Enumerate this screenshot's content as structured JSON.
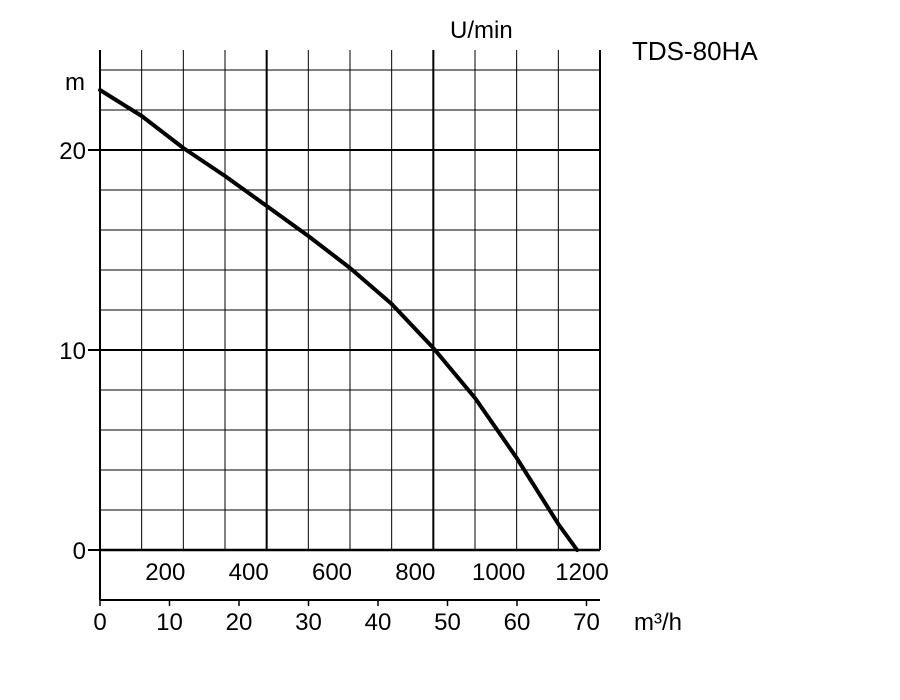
{
  "chart_data": {
    "type": "line",
    "title": "TDS-80HA",
    "ylabel": "m",
    "xlabel_top": "U/min",
    "xlabel_bottom": "m³/h",
    "ylim": [
      0,
      24
    ],
    "y_ticks": [
      "0",
      "10",
      "20"
    ],
    "x_top_lim": [
      0,
      1200
    ],
    "x_top_ticks": [
      "200",
      "400",
      "600",
      "800",
      "1000",
      "1200"
    ],
    "xlim": [
      0,
      70
    ],
    "x_bottom_ticks": [
      "0",
      "10",
      "20",
      "30",
      "40",
      "50",
      "60",
      "70"
    ],
    "grid": true,
    "series": [
      {
        "x": [
          0,
          100,
          200,
          300,
          400,
          500,
          600,
          700,
          800,
          900,
          1000,
          1100,
          1145
        ],
        "y": [
          23,
          21.7,
          20.1,
          18.7,
          17.2,
          15.7,
          14.1,
          12.3,
          10.1,
          7.6,
          4.6,
          1.3,
          0
        ]
      }
    ]
  }
}
